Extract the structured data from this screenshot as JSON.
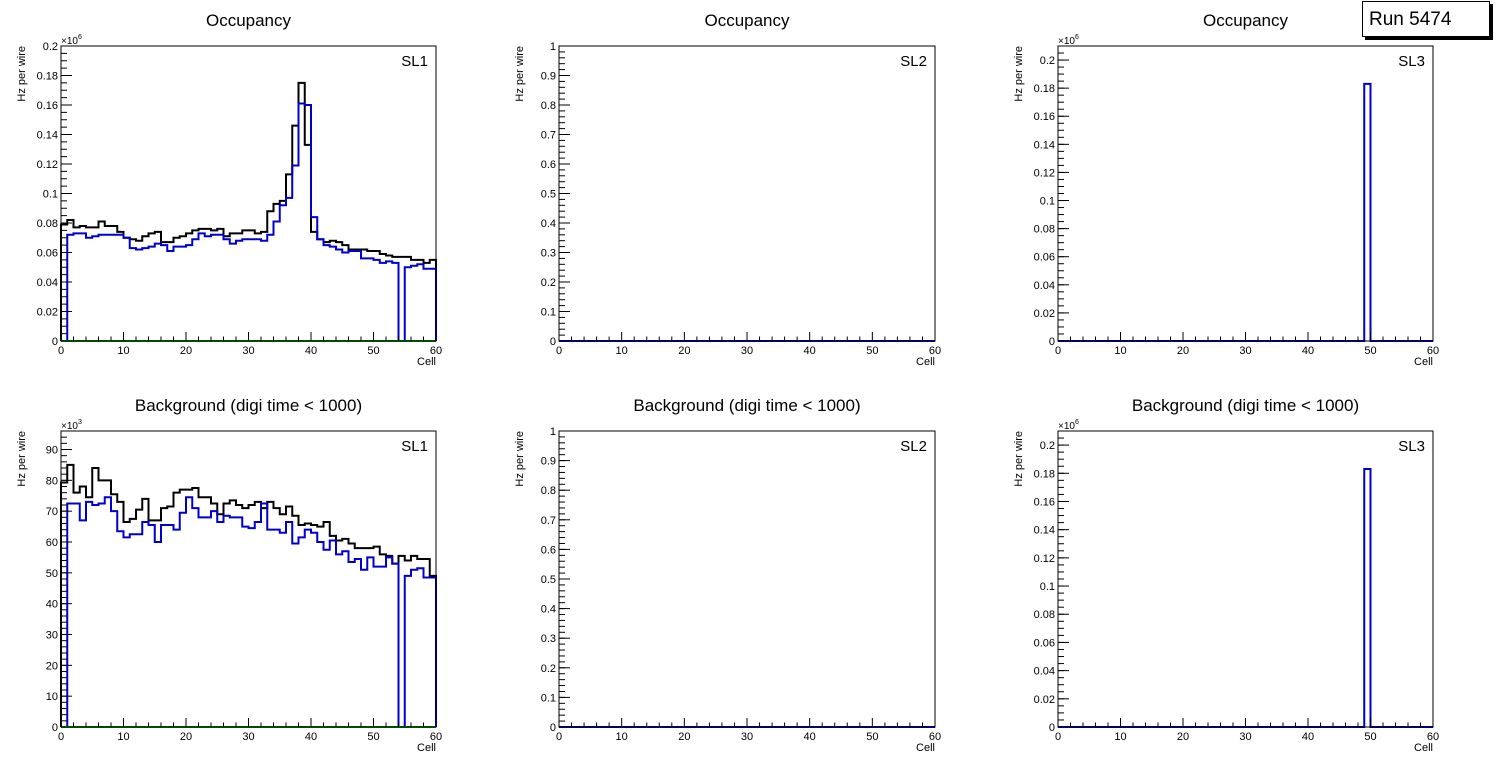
{
  "run_label": "Run 5474",
  "colors": {
    "black": "#000000",
    "blue": "#0000cc",
    "green": "#009900"
  },
  "chart_data": [
    {
      "type": "bar",
      "histogram": true,
      "title": "Occupancy",
      "panel_label": "SL1",
      "xlabel": "Cell",
      "ylabel": "Hz per wire",
      "exponent": "6",
      "xlim": [
        0,
        60
      ],
      "ylim": [
        0,
        0.2
      ],
      "xticks": [
        0,
        10,
        20,
        30,
        40,
        50,
        60
      ],
      "yticks_step": 0.02,
      "yminor_step": 0.005,
      "series": [
        {
          "name": "black",
          "values": [
            0.079,
            0.082,
            0.077,
            0.078,
            0.077,
            0.077,
            0.081,
            0.078,
            0.078,
            0.074,
            0.07,
            0.069,
            0.068,
            0.071,
            0.073,
            0.074,
            0.067,
            0.067,
            0.07,
            0.071,
            0.073,
            0.075,
            0.076,
            0.076,
            0.075,
            0.076,
            0.071,
            0.073,
            0.073,
            0.075,
            0.075,
            0.073,
            0.074,
            0.088,
            0.093,
            0.095,
            0.113,
            0.146,
            0.175,
            0.133,
            0.074,
            0.069,
            0.067,
            0.068,
            0.067,
            0.065,
            0.062,
            0.062,
            0.062,
            0.061,
            0.061,
            0.059,
            0.058,
            0.057,
            0.057,
            0.057,
            0.055,
            0.055,
            0.053,
            0.055
          ]
        },
        {
          "name": "blue",
          "values": [
            0,
            0.072,
            0.073,
            0.073,
            0.07,
            0.071,
            0.072,
            0.072,
            0.072,
            0.072,
            0.07,
            0.063,
            0.062,
            0.063,
            0.064,
            0.066,
            0.065,
            0.061,
            0.064,
            0.064,
            0.065,
            0.069,
            0.073,
            0.071,
            0.072,
            0.072,
            0.069,
            0.066,
            0.068,
            0.069,
            0.069,
            0.069,
            0.068,
            0.072,
            0.081,
            0.092,
            0.097,
            0.119,
            0.161,
            0.16,
            0.084,
            0.069,
            0.065,
            0.064,
            0.062,
            0.06,
            0.061,
            0.061,
            0.056,
            0.056,
            0.055,
            0.053,
            0.054,
            0.053,
            0,
            0.05,
            0.051,
            0.052,
            0.049,
            0.049
          ]
        },
        {
          "name": "green",
          "values": [
            0,
            0,
            0,
            0,
            0,
            0,
            0,
            0,
            0,
            0,
            0,
            0,
            0,
            0,
            0,
            0,
            0,
            0,
            0,
            0,
            0,
            0,
            0,
            0,
            0,
            0,
            0,
            0,
            0,
            0,
            0,
            0,
            0,
            0,
            0,
            0,
            0,
            0,
            0,
            0,
            0,
            0,
            0,
            0,
            0,
            0,
            0,
            0,
            0,
            0,
            0,
            0,
            0,
            0,
            0,
            0,
            0,
            0,
            0,
            0
          ]
        }
      ]
    },
    {
      "type": "bar",
      "histogram": true,
      "title": "Occupancy",
      "panel_label": "SL2",
      "xlabel": "Cell",
      "ylabel": "Hz per wire",
      "exponent": "",
      "xlim": [
        0,
        60
      ],
      "ylim": [
        0,
        1
      ],
      "xticks": [
        0,
        10,
        20,
        30,
        40,
        50,
        60
      ],
      "yticks_step": 0.1,
      "yminor_step": 0.02,
      "series": [
        {
          "name": "blue",
          "values": [
            0,
            0,
            0,
            0,
            0,
            0,
            0,
            0,
            0,
            0,
            0,
            0,
            0,
            0,
            0,
            0,
            0,
            0,
            0,
            0,
            0,
            0,
            0,
            0,
            0,
            0,
            0,
            0,
            0,
            0,
            0,
            0,
            0,
            0,
            0,
            0,
            0,
            0,
            0,
            0,
            0,
            0,
            0,
            0,
            0,
            0,
            0,
            0,
            0,
            0,
            0,
            0,
            0,
            0,
            0,
            0,
            0,
            0,
            0,
            0
          ]
        }
      ]
    },
    {
      "type": "bar",
      "histogram": true,
      "title": "Occupancy",
      "panel_label": "SL3",
      "xlabel": "Cell",
      "ylabel": "Hz per wire",
      "exponent": "6",
      "xlim": [
        0,
        60
      ],
      "ylim": [
        0,
        0.21
      ],
      "xticks": [
        0,
        10,
        20,
        30,
        40,
        50,
        60
      ],
      "yticks_step": 0.02,
      "yminor_step": 0.005,
      "series": [
        {
          "name": "blue",
          "values": [
            0,
            0,
            0,
            0,
            0,
            0,
            0,
            0,
            0,
            0,
            0,
            0,
            0,
            0,
            0,
            0,
            0,
            0,
            0,
            0,
            0,
            0,
            0,
            0,
            0,
            0,
            0,
            0,
            0,
            0,
            0,
            0,
            0,
            0,
            0,
            0,
            0,
            0,
            0,
            0,
            0,
            0,
            0,
            0,
            0,
            0,
            0,
            0,
            0,
            0.183,
            0,
            0,
            0,
            0,
            0,
            0,
            0,
            0,
            0,
            0
          ]
        }
      ]
    },
    {
      "type": "bar",
      "histogram": true,
      "title": "Background (digi time < 1000)",
      "panel_label": "SL1",
      "xlabel": "Cell",
      "ylabel": "Hz per wire",
      "exponent": "3",
      "xlim": [
        0,
        60
      ],
      "ylim": [
        0,
        96
      ],
      "xticks": [
        0,
        10,
        20,
        30,
        40,
        50,
        60
      ],
      "yticks_step": 10,
      "yminor_step": 2,
      "series": [
        {
          "name": "black",
          "values": [
            79.3,
            85,
            76,
            78,
            74.5,
            84,
            80,
            80,
            75.5,
            73,
            66.5,
            67.5,
            70.5,
            74,
            67,
            67,
            71,
            71.5,
            76,
            77,
            77,
            77.5,
            74.5,
            74.5,
            72.5,
            69,
            72.5,
            73.5,
            72,
            71,
            72,
            73,
            71,
            73,
            71,
            69,
            71.5,
            68.5,
            65.5,
            66,
            65.5,
            65,
            66.5,
            62,
            60.5,
            61,
            59.5,
            58,
            58,
            58,
            58.5,
            56,
            55.5,
            53,
            55.5,
            54,
            55.5,
            54.5,
            54.5,
            49
          ]
        },
        {
          "name": "blue",
          "values": [
            0,
            72.5,
            72.5,
            67,
            73,
            72,
            72.5,
            74.5,
            70,
            63.5,
            61.5,
            62.5,
            62.5,
            66.5,
            65.5,
            60,
            65.5,
            65.5,
            64,
            69.5,
            74.5,
            71,
            68,
            68,
            70,
            66.5,
            68.5,
            68,
            68,
            65,
            64.5,
            66.5,
            72.5,
            64,
            64,
            63,
            66.5,
            59.5,
            61.5,
            64,
            63,
            60,
            57.5,
            60.5,
            56,
            57,
            53.5,
            54.5,
            51,
            55,
            52,
            52,
            55,
            53,
            0,
            49,
            51,
            51.5,
            48.5,
            48.5
          ]
        },
        {
          "name": "green",
          "values": [
            0,
            0,
            0,
            0,
            0,
            0,
            0,
            0,
            0,
            0,
            0,
            0,
            0,
            0,
            0,
            0,
            0,
            0,
            0,
            0,
            0,
            0,
            0,
            0,
            0,
            0,
            0,
            0,
            0,
            0,
            0,
            0,
            0,
            0,
            0,
            0,
            0,
            0,
            0,
            0,
            0,
            0,
            0,
            0,
            0,
            0,
            0,
            0,
            0,
            0,
            0,
            0,
            0,
            0,
            0,
            0,
            0,
            0,
            0,
            0
          ]
        }
      ]
    },
    {
      "type": "bar",
      "histogram": true,
      "title": "Background (digi time < 1000)",
      "panel_label": "SL2",
      "xlabel": "Cell",
      "ylabel": "Hz per wire",
      "exponent": "",
      "xlim": [
        0,
        60
      ],
      "ylim": [
        0,
        1
      ],
      "xticks": [
        0,
        10,
        20,
        30,
        40,
        50,
        60
      ],
      "yticks_step": 0.1,
      "yminor_step": 0.02,
      "series": [
        {
          "name": "blue",
          "values": [
            0,
            0,
            0,
            0,
            0,
            0,
            0,
            0,
            0,
            0,
            0,
            0,
            0,
            0,
            0,
            0,
            0,
            0,
            0,
            0,
            0,
            0,
            0,
            0,
            0,
            0,
            0,
            0,
            0,
            0,
            0,
            0,
            0,
            0,
            0,
            0,
            0,
            0,
            0,
            0,
            0,
            0,
            0,
            0,
            0,
            0,
            0,
            0,
            0,
            0,
            0,
            0,
            0,
            0,
            0,
            0,
            0,
            0,
            0,
            0
          ]
        }
      ]
    },
    {
      "type": "bar",
      "histogram": true,
      "title": "Background (digi time < 1000)",
      "panel_label": "SL3",
      "xlabel": "Cell",
      "ylabel": "Hz per wire",
      "exponent": "6",
      "xlim": [
        0,
        60
      ],
      "ylim": [
        0,
        0.21
      ],
      "xticks": [
        0,
        10,
        20,
        30,
        40,
        50,
        60
      ],
      "yticks_step": 0.02,
      "yminor_step": 0.005,
      "series": [
        {
          "name": "blue",
          "values": [
            0,
            0,
            0,
            0,
            0,
            0,
            0,
            0,
            0,
            0,
            0,
            0,
            0,
            0,
            0,
            0,
            0,
            0,
            0,
            0,
            0,
            0,
            0,
            0,
            0,
            0,
            0,
            0,
            0,
            0,
            0,
            0,
            0,
            0,
            0,
            0,
            0,
            0,
            0,
            0,
            0,
            0,
            0,
            0,
            0,
            0,
            0,
            0,
            0,
            0.183,
            0,
            0,
            0,
            0,
            0,
            0,
            0,
            0,
            0,
            0
          ]
        }
      ]
    }
  ]
}
